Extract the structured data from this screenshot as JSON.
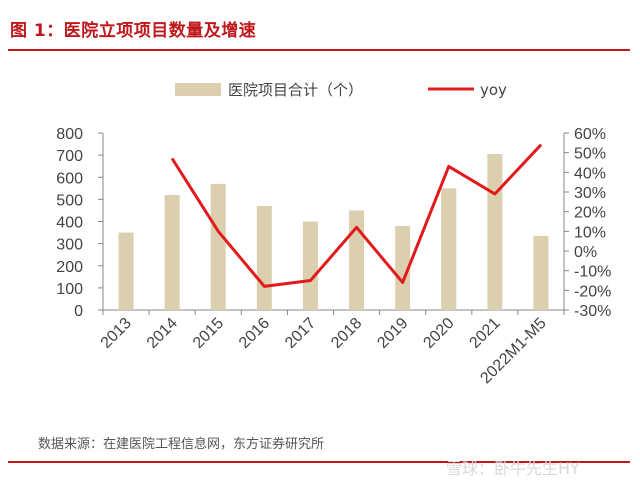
{
  "header": {
    "title": "图 1：医院立项项目数量及增速"
  },
  "footer": {
    "source": "数据来源：在建医院工程信息网，东方证券研究所",
    "watermark": "雪球：卧牛先生HY"
  },
  "colors": {
    "accent": "#c0171c",
    "bar": "#dccfb0",
    "line": "#e11b1b",
    "axis": "#888888",
    "text": "#444444"
  },
  "chart_data": {
    "type": "bar",
    "categories": [
      "2013",
      "2014",
      "2015",
      "2016",
      "2017",
      "2018",
      "2019",
      "2020",
      "2021",
      "2022M1-M5"
    ],
    "series": [
      {
        "name": "医院项目合计（个）",
        "type": "bar",
        "axis": "left",
        "values": [
          350,
          520,
          570,
          470,
          400,
          450,
          380,
          550,
          705,
          335
        ]
      },
      {
        "name": "yoy",
        "type": "line",
        "axis": "right",
        "values": [
          null,
          47,
          10,
          -18,
          -15,
          12,
          -16,
          43,
          29,
          54
        ]
      }
    ],
    "left_axis": {
      "ylim": [
        0,
        800
      ],
      "ticks": [
        0,
        100,
        200,
        300,
        400,
        500,
        600,
        700,
        800
      ],
      "tick_labels": [
        "0",
        "100",
        "200",
        "300",
        "400",
        "500",
        "600",
        "700",
        "800"
      ]
    },
    "right_axis": {
      "ylim": [
        -30,
        60
      ],
      "ticks": [
        -30,
        -20,
        -10,
        0,
        10,
        20,
        30,
        40,
        50,
        60
      ],
      "tick_labels": [
        "-30%",
        "-20%",
        "-10%",
        "0%",
        "10%",
        "20%",
        "30%",
        "40%",
        "50%",
        "60%"
      ]
    },
    "legend_position": "top-center",
    "grid": false
  }
}
